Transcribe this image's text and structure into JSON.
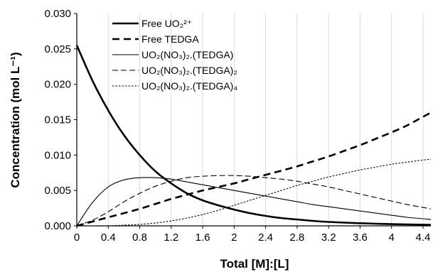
{
  "chart_data": {
    "type": "line",
    "xlabel": "Total [M]:[L]",
    "ylabel": "Concentration (mol L⁻¹)",
    "xlim": [
      0,
      4.5
    ],
    "ylim": [
      0,
      0.03
    ],
    "x_ticks": [
      "0",
      "0.4",
      "0.8",
      "1.2",
      "1.6",
      "2",
      "2.4",
      "2.8",
      "3.2",
      "3.6",
      "4",
      "4.4"
    ],
    "y_ticks": [
      "0.000",
      "0.005",
      "0.010",
      "0.015",
      "0.020",
      "0.025",
      "0.030"
    ],
    "grid": "vertical",
    "legend_position": "top-left",
    "x": [
      0,
      0.2,
      0.4,
      0.6,
      0.8,
      1.0,
      1.2,
      1.4,
      1.6,
      1.8,
      2.0,
      2.2,
      2.4,
      2.6,
      2.8,
      3.0,
      3.2,
      3.4,
      3.6,
      3.8,
      4.0,
      4.2,
      4.4,
      4.5
    ],
    "series": [
      {
        "name": "Free UO₂²⁺",
        "style": "thick-solid",
        "values": [
          0.0255,
          0.0205,
          0.0163,
          0.0128,
          0.01,
          0.0077,
          0.006,
          0.0046,
          0.0036,
          0.0029,
          0.0023,
          0.0018,
          0.0014,
          0.0011,
          0.0009,
          0.0007,
          0.00055,
          0.00045,
          0.00037,
          0.0003,
          0.00024,
          0.0002,
          0.00016,
          0.00015
        ]
      },
      {
        "name": "Free TEDGA",
        "style": "thick-dash",
        "values": [
          0.0,
          0.0006,
          0.0012,
          0.0018,
          0.0024,
          0.0031,
          0.0038,
          0.0044,
          0.005,
          0.0055,
          0.006,
          0.0066,
          0.0072,
          0.0078,
          0.0084,
          0.0091,
          0.0098,
          0.0106,
          0.0114,
          0.0123,
          0.0132,
          0.0142,
          0.0154,
          0.016
        ]
      },
      {
        "name": "UO₂(NO₃)₂.(TEDGA)",
        "style": "thin-solid",
        "values": [
          0.0,
          0.0033,
          0.0055,
          0.0065,
          0.0068,
          0.0068,
          0.0066,
          0.0062,
          0.0058,
          0.0054,
          0.005,
          0.0046,
          0.0042,
          0.0038,
          0.0034,
          0.003,
          0.0027,
          0.0024,
          0.0021,
          0.0018,
          0.0015,
          0.0012,
          0.001,
          0.0009
        ]
      },
      {
        "name": "UO₂(NO₃)₂.(TEDGA)₂",
        "style": "thin-dash",
        "values": [
          0.0,
          0.0008,
          0.002,
          0.0034,
          0.0046,
          0.0056,
          0.0063,
          0.0068,
          0.007,
          0.0071,
          0.0071,
          0.007,
          0.0068,
          0.0066,
          0.0063,
          0.0059,
          0.0055,
          0.005,
          0.0045,
          0.004,
          0.0035,
          0.003,
          0.0026,
          0.0024
        ]
      },
      {
        "name": "UO₂(NO₃)₂.(TEDGA)₄",
        "style": "dotted",
        "values": [
          0.0,
          0.0,
          0.0,
          0.0001,
          0.0002,
          0.0004,
          0.0007,
          0.0011,
          0.0016,
          0.0022,
          0.0029,
          0.0036,
          0.0043,
          0.005,
          0.0057,
          0.0063,
          0.0069,
          0.0074,
          0.0079,
          0.0083,
          0.0087,
          0.009,
          0.0093,
          0.0094
        ]
      }
    ]
  }
}
